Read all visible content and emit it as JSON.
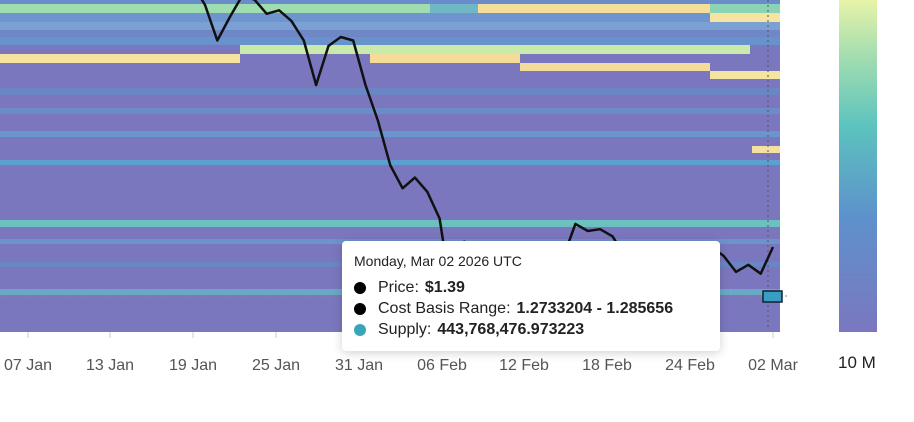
{
  "chart_data": {
    "type": "heatmap",
    "x_ticks": [
      "07 Jan",
      "13 Jan",
      "19 Jan",
      "25 Jan",
      "31 Jan",
      "06 Feb",
      "12 Feb",
      "18 Feb",
      "24 Feb",
      "02 Mar"
    ],
    "colorbar": {
      "label": "10 M",
      "colors": [
        "#7b77bf",
        "#5d92cc",
        "#5cc3be",
        "#9fdcb0",
        "#e7f3a8"
      ]
    },
    "price_series": {
      "dates": [
        "Jan 15",
        "Jan 16",
        "Jan 17",
        "Jan 18",
        "Jan 19",
        "Jan 20",
        "Jan 21",
        "Jan 22",
        "Jan 23",
        "Jan 24",
        "Jan 25",
        "Jan 26",
        "Jan 27",
        "Jan 28",
        "Jan 29",
        "Jan 30",
        "Jan 31",
        "Feb 01",
        "Feb 02",
        "Feb 03",
        "Feb 04",
        "Feb 05",
        "Feb 06",
        "Feb 07",
        "Feb 08",
        "Feb 09",
        "Feb 10",
        "Feb 11",
        "Feb 12",
        "Feb 13",
        "Feb 14",
        "Feb 15",
        "Feb 16",
        "Feb 17",
        "Feb 18",
        "Feb 19",
        "Feb 20",
        "Feb 21",
        "Feb 22",
        "Feb 23",
        "Feb 24",
        "Feb 25",
        "Feb 26",
        "Feb 27",
        "Feb 28",
        "Mar 01",
        "Mar 02"
      ],
      "values": [
        2.75,
        2.55,
        2.68,
        2.8,
        2.78,
        2.7,
        2.72,
        2.66,
        2.55,
        2.3,
        2.52,
        2.57,
        2.55,
        2.3,
        2.1,
        1.85,
        1.72,
        1.78,
        1.7,
        1.55,
        1.1,
        1.42,
        1.38,
        1.33,
        1.38,
        1.39,
        1.35,
        1.28,
        1.24,
        1.33,
        1.52,
        1.48,
        1.49,
        1.45,
        1.34,
        1.31,
        1.36,
        1.31,
        1.36,
        1.36,
        1.28,
        1.39,
        1.34,
        1.25,
        1.29,
        1.24,
        1.39
      ]
    }
  },
  "tooltip": {
    "date": "Monday, Mar 02 2026 UTC",
    "price_label": "Price:",
    "price_value": "$1.39",
    "range_label": "Cost Basis Range:",
    "range_value": "1.2733204 - 1.285656",
    "supply_label": "Supply:",
    "supply_value": "443,768,476.973223",
    "colors": {
      "price": "#000000",
      "range": "#000000",
      "supply": "#3aa5b8"
    }
  }
}
